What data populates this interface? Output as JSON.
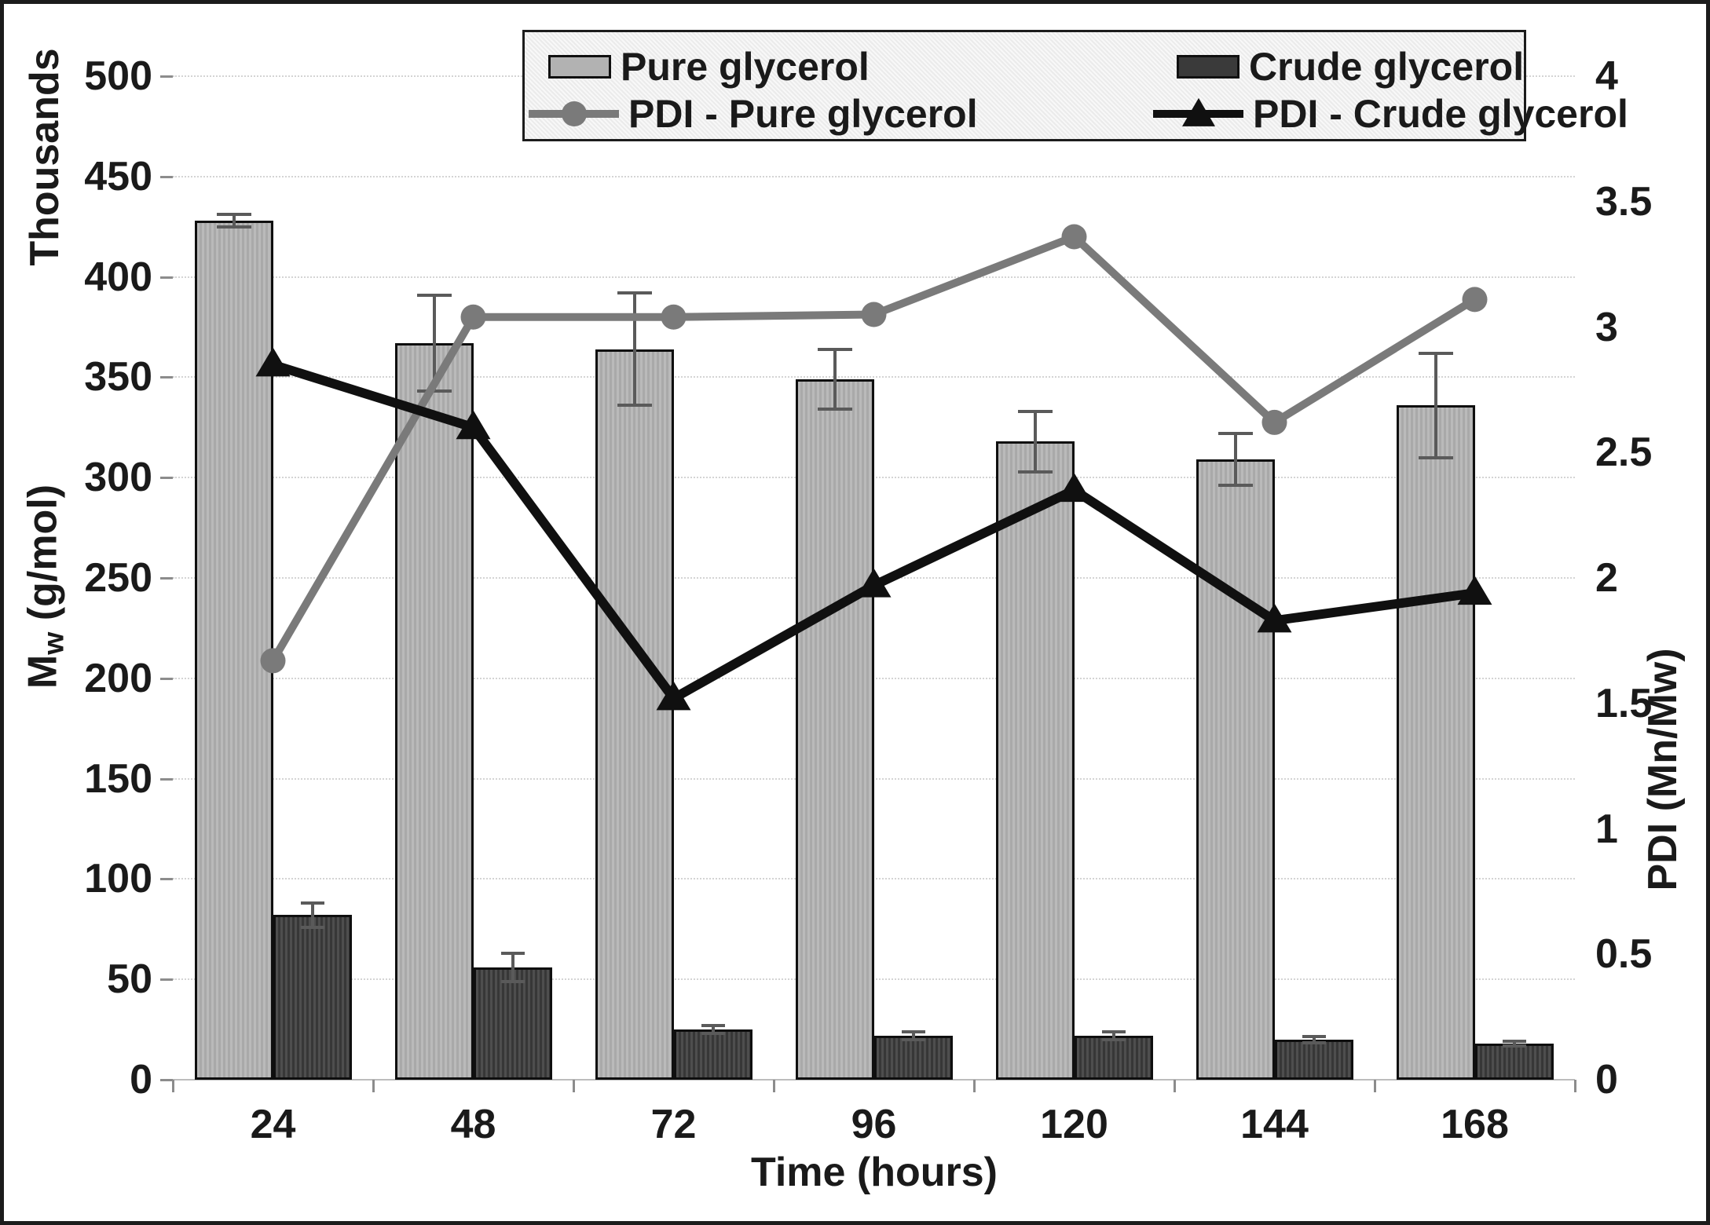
{
  "chart_data": {
    "type": "bar+line combo",
    "title": "",
    "categories": [
      24,
      48,
      72,
      96,
      120,
      144,
      168
    ],
    "x_axis": {
      "title": "Time (hours)"
    },
    "left_axis": {
      "title_prefix": "M",
      "title_sub": "w",
      "title_suffix": " (g/mol)",
      "thousands_label": "Thousands",
      "min": 0,
      "max": 500,
      "step": 50,
      "ticks": [
        0,
        50,
        100,
        150,
        200,
        250,
        300,
        350,
        400,
        450,
        500
      ]
    },
    "right_axis": {
      "title": "PDI (Mn/Mw)",
      "min": 0,
      "max": 4,
      "step": 0.5,
      "ticks": [
        "0",
        "0.5",
        "1",
        "1.5",
        "2",
        "2.5",
        "3",
        "3.5",
        "4"
      ]
    },
    "grid": true,
    "legend_position": "top",
    "series": [
      {
        "name": "Pure glycerol",
        "type": "bar",
        "axis": "left",
        "values": [
          428,
          367,
          364,
          349,
          318,
          309,
          336
        ],
        "errors": [
          3,
          24,
          28,
          15,
          15,
          13,
          26
        ],
        "color": "#b2b2b2"
      },
      {
        "name": "Crude glycerol",
        "type": "bar",
        "axis": "left",
        "values": [
          82,
          56,
          25,
          22,
          22,
          20,
          18
        ],
        "errors": [
          6,
          7,
          2,
          2,
          2,
          1.5,
          1
        ],
        "color": "#3a3a3a"
      },
      {
        "name": "PDI - Pure glycerol",
        "type": "line",
        "marker": "circle",
        "axis": "right",
        "values": [
          1.67,
          3.04,
          3.04,
          3.05,
          3.36,
          2.62,
          3.11
        ],
        "color": "#7a7a7a"
      },
      {
        "name": "PDI - Crude glycerol",
        "type": "line",
        "marker": "triangle",
        "axis": "right",
        "values": [
          2.85,
          2.6,
          1.52,
          1.97,
          2.35,
          1.83,
          1.94
        ],
        "color": "#101010"
      }
    ]
  }
}
